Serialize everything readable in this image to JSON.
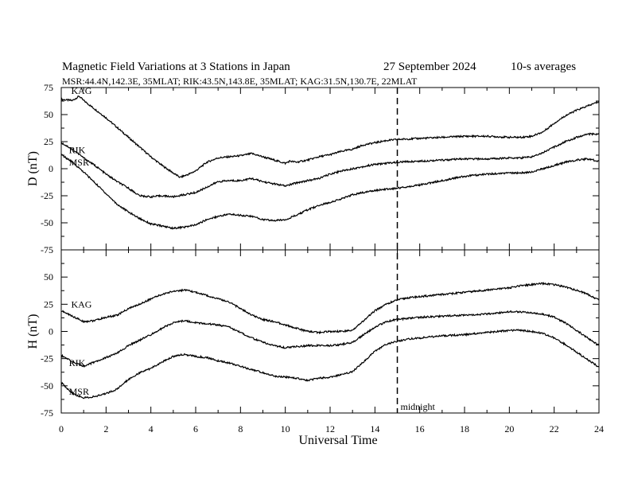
{
  "chart_data": {
    "type": "line",
    "title": "Magnetic Field Variations at 3 Stations in Japan",
    "date": "27 September 2024",
    "averaging": "10-s averages",
    "subtitle": "MSR:44.4N,142.3E, 35MLAT;  RIK:43.5N,143.8E, 35MLAT;  KAG:31.5N,130.7E, 22MLAT",
    "xlabel": "Universal Time",
    "xlim": [
      0,
      24
    ],
    "xticks": [
      0,
      2,
      4,
      6,
      8,
      10,
      12,
      14,
      16,
      18,
      20,
      22,
      24
    ],
    "annotation": {
      "x": 15,
      "label": "midnight"
    },
    "panels": [
      {
        "ylabel": "D (nT)",
        "ylim": [
          -75,
          75
        ],
        "yticks": [
          75,
          50,
          25,
          0,
          -25,
          -50,
          -75
        ],
        "series": [
          {
            "name": "KAG",
            "x": [
              0,
              0.5,
              0.8,
              1,
              1.5,
              2,
              2.5,
              3,
              3.5,
              4,
              4.5,
              5,
              5.3,
              5.7,
              6,
              6.5,
              7,
              7.5,
              8,
              8.5,
              9,
              9.5,
              10,
              10.2,
              10.5,
              11,
              11.5,
              12,
              12.5,
              13,
              13.5,
              14,
              14.5,
              15,
              16,
              17,
              18,
              19,
              20,
              20.5,
              21,
              21.5,
              22,
              22.5,
              23,
              23.5,
              24
            ],
            "values": [
              64,
              63,
              67,
              63,
              55,
              47,
              38,
              29,
              20,
              11,
              3,
              -4,
              -8,
              -5,
              -2,
              6,
              10,
              11,
              12,
              14,
              11,
              8,
              5,
              7,
              6,
              8,
              11,
              13,
              16,
              18,
              22,
              24,
              26,
              27,
              28,
              29,
              30,
              30,
              29,
              29,
              30,
              34,
              42,
              49,
              54,
              58,
              62
            ]
          },
          {
            "name": "RIK",
            "x": [
              0,
              0.5,
              1,
              1.5,
              2,
              2.5,
              3,
              3.5,
              4,
              4.5,
              5,
              5.5,
              6,
              6.5,
              7,
              7.5,
              8,
              8.5,
              9,
              9.5,
              10,
              10.5,
              11,
              11.5,
              12,
              12.5,
              13,
              13.5,
              14,
              14.5,
              15,
              16,
              17,
              18,
              19,
              20,
              20.5,
              21,
              21.5,
              22,
              22.5,
              23,
              23.5,
              24
            ],
            "values": [
              24,
              18,
              10,
              3,
              -5,
              -12,
              -18,
              -25,
              -26,
              -25,
              -26,
              -24,
              -22,
              -17,
              -12,
              -11,
              -11,
              -9,
              -12,
              -14,
              -16,
              -13,
              -11,
              -9,
              -5,
              -2,
              0,
              2,
              4,
              5,
              6,
              7,
              8,
              9,
              9,
              10,
              10,
              11,
              15,
              20,
              25,
              29,
              32,
              32
            ]
          },
          {
            "name": "MSR",
            "x": [
              0,
              0.5,
              1,
              1.5,
              2,
              2.5,
              3,
              3.5,
              4,
              4.5,
              5,
              5.5,
              6,
              6.5,
              7,
              7.5,
              8,
              8.5,
              9,
              9.5,
              10,
              10.5,
              11,
              11.5,
              12,
              12.5,
              13,
              13.5,
              14,
              14.5,
              15,
              16,
              17,
              18,
              19,
              20,
              20.5,
              21,
              21.5,
              22,
              22.5,
              23,
              23.5,
              24
            ],
            "values": [
              13,
              6,
              -3,
              -13,
              -23,
              -33,
              -40,
              -46,
              -51,
              -53,
              -55,
              -54,
              -52,
              -47,
              -44,
              -42,
              -43,
              -44,
              -47,
              -48,
              -47,
              -43,
              -38,
              -34,
              -31,
              -28,
              -24,
              -22,
              -20,
              -19,
              -18,
              -15,
              -11,
              -7,
              -5,
              -4,
              -4,
              -3,
              0,
              3,
              6,
              8,
              9,
              7
            ]
          }
        ]
      },
      {
        "ylabel": "H (nT)",
        "ylim": [
          -75,
          75
        ],
        "yticks": [
          50,
          25,
          0,
          -25,
          -50,
          -75
        ],
        "series": [
          {
            "name": "KAG",
            "x": [
              0,
              0.5,
              1,
              1.5,
              2,
              2.5,
              3,
              3.5,
              4,
              4.5,
              5,
              5.5,
              6,
              6.5,
              7,
              7.5,
              8,
              8.5,
              9,
              9.5,
              10,
              10.5,
              11,
              11.5,
              12,
              12.5,
              13,
              13.5,
              14,
              14.5,
              15,
              15.5,
              16,
              17,
              18,
              19,
              20,
              20.5,
              21,
              21.5,
              22,
              22.5,
              23,
              23.5,
              24
            ],
            "values": [
              19,
              14,
              9,
              10,
              13,
              15,
              21,
              25,
              30,
              34,
              37,
              38,
              36,
              33,
              30,
              27,
              21,
              15,
              11,
              9,
              6,
              3,
              0,
              -1,
              0,
              0,
              1,
              10,
              19,
              25,
              29,
              31,
              32,
              34,
              36,
              38,
              40,
              42,
              43,
              44,
              43,
              41,
              38,
              34,
              29
            ]
          },
          {
            "name": "RIK",
            "x": [
              0,
              0.5,
              1,
              1.5,
              2,
              2.5,
              3,
              3.5,
              4,
              4.5,
              5,
              5.5,
              6,
              6.5,
              7,
              7.5,
              8,
              8.5,
              9,
              9.5,
              10,
              10.5,
              11,
              11.5,
              12,
              12.5,
              13,
              13.5,
              14,
              14.5,
              15,
              15.5,
              16,
              17,
              18,
              19,
              20,
              20.5,
              21,
              21.5,
              22,
              22.5,
              23,
              23.5,
              24
            ],
            "values": [
              -22,
              -28,
              -32,
              -28,
              -24,
              -20,
              -13,
              -8,
              -3,
              3,
              8,
              10,
              8,
              7,
              6,
              4,
              -1,
              -6,
              -10,
              -13,
              -15,
              -14,
              -13,
              -13,
              -13,
              -12,
              -10,
              -3,
              4,
              9,
              11,
              12,
              13,
              14,
              15,
              16,
              18,
              18,
              17,
              16,
              13,
              8,
              1,
              -6,
              -13
            ]
          },
          {
            "name": "MSR",
            "x": [
              0,
              0.5,
              1,
              1.5,
              2,
              2.5,
              3,
              3.5,
              4,
              4.5,
              5,
              5.5,
              6,
              6.5,
              7,
              7.5,
              8,
              8.5,
              9,
              9.5,
              10,
              10.5,
              11,
              11.5,
              12,
              12.5,
              13,
              13.5,
              14,
              14.5,
              15,
              15.5,
              16,
              17,
              18,
              19,
              20,
              20.5,
              21,
              21.5,
              22,
              22.5,
              23,
              23.5,
              24
            ],
            "values": [
              -47,
              -57,
              -61,
              -60,
              -57,
              -53,
              -44,
              -38,
              -34,
              -28,
              -23,
              -21,
              -23,
              -24,
              -27,
              -29,
              -32,
              -35,
              -38,
              -41,
              -42,
              -43,
              -45,
              -43,
              -42,
              -40,
              -37,
              -28,
              -18,
              -12,
              -9,
              -7,
              -6,
              -4,
              -3,
              -1,
              1,
              1,
              0,
              -2,
              -6,
              -12,
              -19,
              -26,
              -33
            ]
          }
        ]
      }
    ]
  }
}
